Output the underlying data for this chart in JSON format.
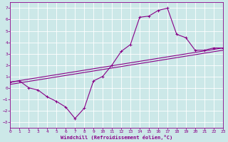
{
  "bg_color": "#cce8e8",
  "grid_color": "#ffffff",
  "line_color": "#880088",
  "xlim": [
    0,
    23
  ],
  "ylim": [
    -3.5,
    7.5
  ],
  "xticks": [
    0,
    1,
    2,
    3,
    4,
    5,
    6,
    7,
    8,
    9,
    10,
    11,
    12,
    13,
    14,
    15,
    16,
    17,
    18,
    19,
    20,
    21,
    22,
    23
  ],
  "yticks": [
    -3,
    -2,
    -1,
    0,
    1,
    2,
    3,
    4,
    5,
    6,
    7
  ],
  "xlabel": "Windchill (Refroidissement éolien,°C)",
  "curve1_x": [
    0,
    1,
    2,
    3,
    4,
    5,
    6,
    7,
    8,
    9,
    10,
    11,
    12,
    13,
    14,
    15,
    16,
    17,
    18,
    19,
    20,
    21,
    22,
    23
  ],
  "curve1_y": [
    0.5,
    0.6,
    0.0,
    -0.2,
    -0.8,
    -1.2,
    -1.7,
    -2.7,
    -1.8,
    0.6,
    1.0,
    2.0,
    3.2,
    3.8,
    6.2,
    6.3,
    6.8,
    7.0,
    4.7,
    4.4,
    3.3,
    3.3,
    3.5,
    3.5
  ],
  "line1_x0": 0,
  "line1_y0": 0.5,
  "line1_x1": 23,
  "line1_y1": 3.5,
  "line2_x0": 0,
  "line2_y0": 0.3,
  "line2_x1": 23,
  "line2_y1": 3.3
}
